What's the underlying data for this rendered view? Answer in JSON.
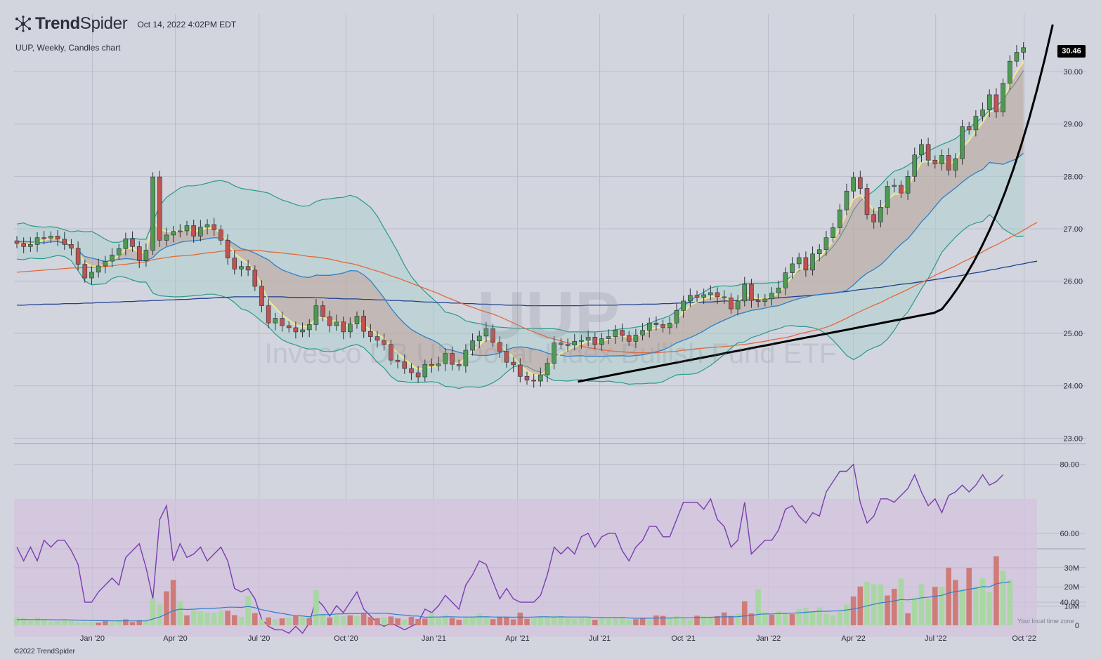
{
  "header": {
    "brand_bold": "Trend",
    "brand_light": "Spider",
    "timestamp": "Oct 14, 2022 4:02PM EDT",
    "subtitle": "UUP, Weekly, Candles chart",
    "copyright": "©2022 TrendSpider",
    "timezone_note": "Your local time zone",
    "last_price_label": "30.46"
  },
  "watermark": {
    "ticker": "UUP",
    "name": "Invesco DB US Dollar Index Bullish Fund ETF"
  },
  "colors": {
    "background": "#d2d5de",
    "up_candle": "#4e9a52",
    "down_candle": "#c0524f",
    "ema_fast": "#f3ec8c",
    "ma_mid": "#2f7fc7",
    "ma_50": "#e06a3c",
    "ma_200": "#1f3f8f",
    "bollinger_fill": "#a9d1cc",
    "bollinger_edge": "#2a9a8a",
    "rsi_line": "#7a3db0",
    "rsi_band": "#d3c3de",
    "volume_up": "#a9d7a3",
    "volume_down": "#cf7c78",
    "trendline": "#000000"
  },
  "chart_data": [
    {
      "type": "candlestick",
      "title": "UUP, Weekly, Candles chart",
      "y_ticks": [
        "23.00",
        "24.00",
        "25.00",
        "26.00",
        "27.00",
        "28.00",
        "29.00",
        "30.00"
      ],
      "x_ticks": [
        "Jan '20",
        "Apr '20",
        "Jul '20",
        "Oct '20",
        "Jan '21",
        "Apr '21",
        "Jul '21",
        "Oct '21",
        "Jan '22",
        "Apr '22",
        "Jul '22",
        "Oct '22"
      ],
      "ylim": [
        22.9,
        30.9
      ],
      "last_price": 30.46,
      "close": [
        26.72,
        26.66,
        26.7,
        26.83,
        26.82,
        26.86,
        26.8,
        26.7,
        26.63,
        26.32,
        26.06,
        26.17,
        26.29,
        26.38,
        26.5,
        26.62,
        26.81,
        26.66,
        26.39,
        26.59,
        27.99,
        26.78,
        26.88,
        26.95,
        26.96,
        27.06,
        26.86,
        27.03,
        27.08,
        26.98,
        26.78,
        26.44,
        26.23,
        26.28,
        26.21,
        25.9,
        25.53,
        25.2,
        25.29,
        25.15,
        25.11,
        25.03,
        25.07,
        25.17,
        25.53,
        25.32,
        25.15,
        25.22,
        25.03,
        25.18,
        25.33,
        25.04,
        24.94,
        24.87,
        24.79,
        24.49,
        24.46,
        24.33,
        24.25,
        24.17,
        24.41,
        24.38,
        24.42,
        24.62,
        24.41,
        24.38,
        24.68,
        24.86,
        24.95,
        25.09,
        24.83,
        24.66,
        24.45,
        24.4,
        24.18,
        24.11,
        24.09,
        24.21,
        24.43,
        24.82,
        24.79,
        24.78,
        24.85,
        24.87,
        24.93,
        24.79,
        24.9,
        24.94,
        25.06,
        24.96,
        24.85,
        24.97,
        25.06,
        25.2,
        25.17,
        25.11,
        25.2,
        25.44,
        25.62,
        25.73,
        25.69,
        25.74,
        25.78,
        25.7,
        25.68,
        25.47,
        25.62,
        25.94,
        25.63,
        25.61,
        25.66,
        25.77,
        25.87,
        26.16,
        26.33,
        26.45,
        26.21,
        26.52,
        26.6,
        26.83,
        27.02,
        27.36,
        27.72,
        27.98,
        27.77,
        27.27,
        27.13,
        27.41,
        27.81,
        27.83,
        27.68,
        28.0,
        28.41,
        28.61,
        28.31,
        28.24,
        28.4,
        28.12,
        28.34,
        28.95,
        28.89,
        29.15,
        29.27,
        29.56,
        29.23,
        29.78,
        30.2,
        30.37,
        30.46
      ],
      "bollinger_upper": [
        27.09,
        27.11,
        27.06,
        27.04,
        27.03,
        27.04,
        27.02,
        26.98,
        26.94,
        26.96,
        26.94,
        26.95,
        26.88,
        26.8,
        26.74,
        26.74,
        26.79,
        26.82,
        26.8,
        26.8,
        27.13,
        27.44,
        27.6,
        27.69,
        27.78,
        27.82,
        27.82,
        27.84,
        27.87,
        27.91,
        27.92,
        27.89,
        27.82,
        27.77,
        27.75,
        27.73,
        27.71,
        27.68,
        27.61,
        27.55,
        27.51,
        27.46,
        27.43,
        27.44,
        27.52,
        27.56,
        27.57,
        27.59,
        27.6,
        27.64,
        27.6,
        27.51,
        27.41,
        27.24,
        27.01,
        26.79,
        26.56,
        26.3,
        26.09,
        25.93,
        25.8,
        25.68,
        25.56,
        25.41,
        25.38,
        25.33,
        25.24,
        25.21,
        25.19,
        25.16,
        25.13,
        25.12,
        25.11,
        25.1,
        25.1,
        25.09,
        25.1,
        25.09,
        25.09,
        25.09,
        25.07,
        25.03,
        25.03,
        25.03,
        25.03,
        25.03,
        25.04,
        25.05,
        25.07,
        25.09,
        25.1,
        25.12,
        25.14,
        25.19,
        25.25,
        25.29,
        25.34,
        25.43,
        25.52,
        25.62,
        25.72,
        25.79,
        25.87,
        25.9,
        25.91,
        25.9,
        25.92,
        25.96,
        25.96,
        25.96,
        25.96,
        25.97,
        25.97,
        26.02,
        26.1,
        26.2,
        26.26,
        26.34,
        26.42,
        26.52,
        26.66,
        26.84,
        27.07,
        27.35,
        27.53,
        27.63,
        27.72,
        27.84,
        27.98,
        28.1,
        28.14,
        28.21,
        28.3,
        28.41,
        28.48,
        28.55,
        28.61,
        28.66,
        28.72,
        28.82,
        28.92,
        29.03,
        29.13,
        29.26,
        29.34,
        29.46,
        29.65,
        29.82,
        30.02
      ],
      "bollinger_lower": [
        26.42,
        26.41,
        26.44,
        26.43,
        26.43,
        26.46,
        26.49,
        26.47,
        26.39,
        26.2,
        26.0,
        25.93,
        25.94,
        25.95,
        26.05,
        26.09,
        26.07,
        26.02,
        25.98,
        25.98,
        25.77,
        25.72,
        25.71,
        25.7,
        25.7,
        25.71,
        25.72,
        25.73,
        25.75,
        25.75,
        25.72,
        25.68,
        25.59,
        25.47,
        25.43,
        25.34,
        25.23,
        25.13,
        24.99,
        24.88,
        24.82,
        24.78,
        24.73,
        24.7,
        24.71,
        24.66,
        24.65,
        24.67,
        24.71,
        24.76,
        24.79,
        24.73,
        24.6,
        24.45,
        24.34,
        24.18,
        24.09,
        24.08,
        24.06,
        24.07,
        24.07,
        24.08,
        24.06,
        23.99,
        23.98,
        23.95,
        23.98,
        23.98,
        23.97,
        24.0,
        24.06,
        24.14,
        24.26,
        24.36,
        24.39,
        24.37,
        24.3,
        24.26,
        24.16,
        24.1,
        24.1,
        24.09,
        24.11,
        24.12,
        24.09,
        24.09,
        24.08,
        24.09,
        24.07,
        24.06,
        24.03,
        24.04,
        24.04,
        24.05,
        24.05,
        24.08,
        24.15,
        24.21,
        24.22,
        24.22,
        24.24,
        24.31,
        24.39,
        24.49,
        24.6,
        24.72,
        24.82,
        24.84,
        24.92,
        24.96,
        25.01,
        25.06,
        25.09,
        25.14,
        25.15,
        25.13,
        25.13,
        25.11,
        25.07,
        24.99,
        24.87,
        24.73,
        24.58,
        24.5,
        24.57,
        24.67,
        24.73,
        24.78,
        24.89,
        25.06,
        25.27,
        25.41,
        25.63,
        25.85,
        26.05,
        26.3,
        26.55,
        26.7,
        26.84,
        26.96,
        27.06,
        27.11,
        27.14,
        27.27,
        27.16,
        27.0,
        26.92,
        26.85,
        26.86
      ],
      "ma_50": [
        26.17,
        26.18,
        26.19,
        26.2,
        26.21,
        26.22,
        26.23,
        26.24,
        26.25,
        26.25,
        26.26,
        26.26,
        26.27,
        26.28,
        26.29,
        26.31,
        26.32,
        26.34,
        26.35,
        26.37,
        26.41,
        26.43,
        26.45,
        26.47,
        26.48,
        26.49,
        26.5,
        26.52,
        26.54,
        26.55,
        26.57,
        26.58,
        26.58,
        26.59,
        26.59,
        26.59,
        26.58,
        26.56,
        26.55,
        26.54,
        26.52,
        26.51,
        26.49,
        26.47,
        26.46,
        26.44,
        26.42,
        26.39,
        26.36,
        26.34,
        26.31,
        26.27,
        26.23,
        26.19,
        26.15,
        26.1,
        26.06,
        26.01,
        25.96,
        25.91,
        25.86,
        25.81,
        25.76,
        25.7,
        25.65,
        25.6,
        25.54,
        25.5,
        25.45,
        25.41,
        25.37,
        25.32,
        25.26,
        25.2,
        25.14,
        25.08,
        25.03,
        24.98,
        24.93,
        24.89,
        24.86,
        24.82,
        24.79,
        24.76,
        24.73,
        24.71,
        24.69,
        24.67,
        24.66,
        24.65,
        24.64,
        24.63,
        24.63,
        24.63,
        24.63,
        24.64,
        24.65,
        24.66,
        24.68,
        24.69,
        24.71,
        24.72,
        24.73,
        24.74,
        24.75,
        24.76,
        24.78,
        24.79,
        24.81,
        24.83,
        24.85,
        24.88,
        24.9,
        24.92,
        24.95,
        24.99,
        25.02,
        25.05,
        25.08,
        25.12,
        25.17,
        25.23,
        25.29,
        25.36,
        25.42,
        25.48,
        25.54,
        25.59,
        25.66,
        25.72,
        25.78,
        25.84,
        25.91,
        25.97,
        26.04,
        26.11,
        26.17,
        26.23,
        26.29,
        26.36,
        26.42,
        26.49,
        26.56,
        26.63,
        26.69,
        26.76,
        26.83,
        26.9,
        26.97,
        27.05,
        27.12
      ],
      "ma_200": [
        25.54,
        25.54,
        25.55,
        25.55,
        25.56,
        25.56,
        25.56,
        25.57,
        25.57,
        25.57,
        25.58,
        25.58,
        25.59,
        25.59,
        25.6,
        25.6,
        25.61,
        25.61,
        25.62,
        25.62,
        25.63,
        25.63,
        25.64,
        25.64,
        25.65,
        25.65,
        25.66,
        25.67,
        25.67,
        25.68,
        25.69,
        25.69,
        25.7,
        25.7,
        25.7,
        25.7,
        25.7,
        25.7,
        25.7,
        25.7,
        25.69,
        25.69,
        25.69,
        25.69,
        25.68,
        25.68,
        25.67,
        25.67,
        25.66,
        25.66,
        25.66,
        25.65,
        25.65,
        25.64,
        25.64,
        25.63,
        25.63,
        25.62,
        25.62,
        25.61,
        25.6,
        25.6,
        25.59,
        25.59,
        25.58,
        25.58,
        25.57,
        25.57,
        25.56,
        25.56,
        25.55,
        25.55,
        25.54,
        25.54,
        25.54,
        25.53,
        25.53,
        25.53,
        25.53,
        25.53,
        25.53,
        25.53,
        25.53,
        25.53,
        25.54,
        25.54,
        25.54,
        25.54,
        25.54,
        25.55,
        25.55,
        25.55,
        25.56,
        25.56,
        25.56,
        25.57,
        25.57,
        25.58,
        25.58,
        25.59,
        25.59,
        25.6,
        25.6,
        25.61,
        25.62,
        25.62,
        25.63,
        25.64,
        25.64,
        25.65,
        25.66,
        25.67,
        25.68,
        25.69,
        25.7,
        25.71,
        25.72,
        25.73,
        25.74,
        25.76,
        25.77,
        25.79,
        25.8,
        25.82,
        25.84,
        25.85,
        25.87,
        25.88,
        25.9,
        25.92,
        25.94,
        25.95,
        25.97,
        25.99,
        26.01,
        26.03,
        26.05,
        26.07,
        26.09,
        26.11,
        26.14,
        26.16,
        26.18,
        26.21,
        26.23,
        26.26,
        26.28,
        26.31,
        26.33,
        26.36,
        26.38
      ],
      "trendline_start": 24.08,
      "trendline_end": 30.9
    },
    {
      "type": "line",
      "title": "RSI",
      "y_ticks": [
        "40.00",
        "60.00",
        "80.00"
      ],
      "ylim": [
        27,
        83
      ],
      "band": [
        30,
        70
      ],
      "midline": 50,
      "values": [
        56,
        52,
        56,
        52,
        58,
        56,
        58,
        58,
        55,
        51,
        40,
        40,
        43,
        45,
        47,
        45,
        53,
        55,
        57,
        50,
        41,
        64,
        68,
        52,
        57,
        53,
        54,
        56,
        52,
        54,
        56,
        52,
        44,
        43,
        44,
        41,
        35,
        33,
        32,
        32,
        31,
        33,
        31,
        34,
        41,
        39,
        36,
        39,
        37,
        40,
        43,
        38,
        36,
        34,
        33,
        34,
        33,
        32,
        33,
        34,
        38,
        37,
        39,
        42,
        40,
        38,
        45,
        48,
        52,
        51,
        46,
        41,
        44,
        41,
        40,
        40,
        40,
        42,
        48,
        56,
        54,
        56,
        54,
        59,
        60,
        56,
        59,
        60,
        60,
        55,
        52,
        56,
        58,
        62,
        62,
        59,
        59,
        64,
        69,
        69,
        69,
        67,
        70,
        64,
        62,
        56,
        58,
        69,
        54,
        56,
        58,
        58,
        61,
        67,
        68,
        65,
        63,
        66,
        65,
        72,
        75,
        78,
        78,
        80,
        69,
        63,
        65,
        70,
        70,
        69,
        71,
        73,
        77,
        72,
        68,
        70,
        66,
        71,
        72,
        74,
        72,
        74,
        77,
        74,
        75,
        77
      ]
    },
    {
      "type": "bar",
      "title": "Volume",
      "y_ticks": [
        "0",
        "10M",
        "20M",
        "30M"
      ],
      "ylim": [
        0,
        35
      ],
      "values": [
        4.2,
        3.9,
        2.5,
        4.1,
        2.8,
        1.9,
        2.2,
        2.6,
        2.7,
        1.5,
        1.5,
        1.8,
        1.4,
        2.2,
        1.5,
        2.8,
        3.1,
        1.7,
        2.7,
        2.4,
        14.0,
        10.9,
        17.7,
        23.6,
        12.7,
        5.2,
        7.8,
        7.2,
        6.7,
        6.6,
        7.5,
        7.6,
        5.3,
        4.4,
        15.3,
        6.3,
        3.1,
        4.1,
        3.1,
        3.6,
        4.1,
        4.8,
        4.5,
        3.7,
        18.3,
        6.0,
        4.1,
        5.3,
        4.7,
        5.2,
        4.7,
        6.5,
        4.3,
        3.7,
        4.2,
        4.6,
        3.6,
        3.0,
        4.4,
        3.3,
        3.5,
        6.6,
        3.7,
        5.4,
        3.8,
        2.9,
        4.0,
        4.6,
        6.1,
        4.8,
        3.2,
        4.3,
        4.3,
        3.1,
        6.6,
        3.4,
        3.6,
        4.6,
        4.5,
        4.9,
        4.5,
        3.8,
        3.4,
        4.0,
        3.9,
        2.9,
        3.8,
        3.6,
        4.4,
        4.4,
        2.8,
        3.2,
        3.9,
        3.1,
        5.1,
        4.9,
        3.8,
        4.8,
        4.0,
        3.0,
        5.0,
        4.7,
        4.4,
        4.8,
        6.7,
        4.9,
        6.1,
        12.5,
        6.2,
        18.8,
        6.8,
        5.5,
        7.2,
        6.4,
        5.8,
        8.5,
        9.0,
        7.3,
        9.4,
        6.1,
        5.2,
        7.5,
        10.8,
        15.0,
        20.2,
        22.7,
        21.4,
        21.2,
        15.5,
        19.0,
        24.3,
        6.3,
        14.4,
        21.4,
        13.9,
        20.0,
        19.9,
        30.0,
        23.6,
        19.0,
        29.9,
        20.3,
        24.4,
        17.2,
        35.9,
        28.3,
        23.5
      ],
      "down": [
        12,
        13,
        16,
        17,
        18,
        22,
        23,
        25,
        31,
        32,
        35,
        37,
        39,
        41,
        43,
        46,
        49,
        51,
        52,
        53,
        55,
        56,
        58,
        59,
        60,
        64,
        65,
        70,
        71,
        72,
        73,
        74,
        75,
        85,
        91,
        92,
        94,
        95,
        100,
        103,
        104,
        105,
        107,
        108,
        111,
        114,
        123,
        124,
        128,
        129,
        131,
        135,
        137,
        138,
        140,
        144,
        147
      ],
      "ma": [
        3.0,
        3.0,
        3.0,
        3.0,
        3.0,
        2.9,
        2.9,
        2.9,
        2.8,
        2.7,
        2.6,
        2.5,
        2.4,
        2.4,
        2.3,
        2.3,
        2.3,
        2.3,
        2.3,
        2.3,
        3.3,
        4.3,
        5.9,
        7.7,
        8.4,
        8.2,
        8.4,
        8.6,
        8.8,
        8.9,
        9.1,
        9.4,
        9.4,
        9.3,
        9.8,
        9.2,
        8.1,
        7.4,
        6.7,
        6.2,
        5.5,
        5.0,
        4.9,
        4.4,
        5.4,
        5.5,
        5.6,
        5.9,
        6.0,
        6.1,
        6.1,
        6.3,
        6.3,
        6.2,
        6.3,
        6.0,
        5.6,
        5.3,
        4.9,
        4.8,
        4.2,
        4.3,
        4.3,
        4.4,
        4.4,
        4.3,
        4.3,
        4.3,
        4.4,
        4.4,
        4.3,
        4.3,
        4.3,
        4.2,
        4.3,
        4.2,
        4.3,
        4.4,
        4.4,
        4.3,
        4.4,
        4.3,
        4.3,
        4.3,
        4.3,
        4.1,
        4.1,
        4.1,
        4.1,
        4.0,
        3.8,
        3.7,
        3.7,
        3.7,
        3.8,
        3.8,
        3.8,
        3.9,
        3.9,
        3.9,
        4.0,
        4.1,
        4.2,
        4.3,
        4.4,
        4.4,
        4.5,
        4.9,
        5.0,
        5.7,
        5.9,
        5.9,
        6.1,
        6.2,
        6.3,
        6.5,
        6.8,
        7.0,
        7.3,
        7.3,
        7.4,
        7.6,
        8.0,
        8.5,
        9.2,
        10.1,
        10.9,
        11.7,
        12.1,
        12.7,
        13.4,
        13.2,
        13.6,
        14.3,
        14.6,
        15.1,
        15.6,
        16.8,
        17.6,
        18.0,
        18.8,
        19.3,
        20.1,
        20.0,
        21.6,
        22.2,
        22.6
      ]
    }
  ]
}
